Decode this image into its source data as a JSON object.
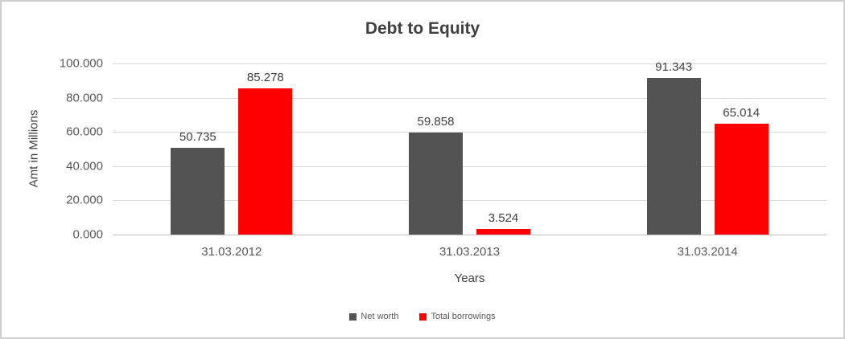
{
  "chart_data": {
    "type": "bar",
    "title": "Debt to Equity",
    "categories": [
      "31.03.2012",
      "31.03.2013",
      "31.03.2014"
    ],
    "series": [
      {
        "name": "Net worth",
        "color": "#535353",
        "values": [
          50.735,
          59.858,
          91.343
        ],
        "labels": [
          "50.735",
          "59.858",
          "91.343"
        ]
      },
      {
        "name": "Total borrowings",
        "color": "#FF0000",
        "values": [
          85.278,
          3.524,
          65.014
        ],
        "labels": [
          "85.278",
          "3.524",
          "65.014"
        ]
      }
    ],
    "xlabel": "Years",
    "ylabel": "Amt in Millions",
    "ylim": [
      0,
      100
    ],
    "ytick_labels": [
      "100.000",
      "80.000",
      "60.000",
      "40.000",
      "20.000",
      "0.000"
    ],
    "grid": true,
    "legend_position": "bottom",
    "colors": {
      "grid": "#D9D9D9",
      "axis_line": "#C0C0C0",
      "title_text": "#404040",
      "tick_text": "#595959",
      "data_label_text": "#404040",
      "frame_border": "#CFCFCF"
    }
  }
}
